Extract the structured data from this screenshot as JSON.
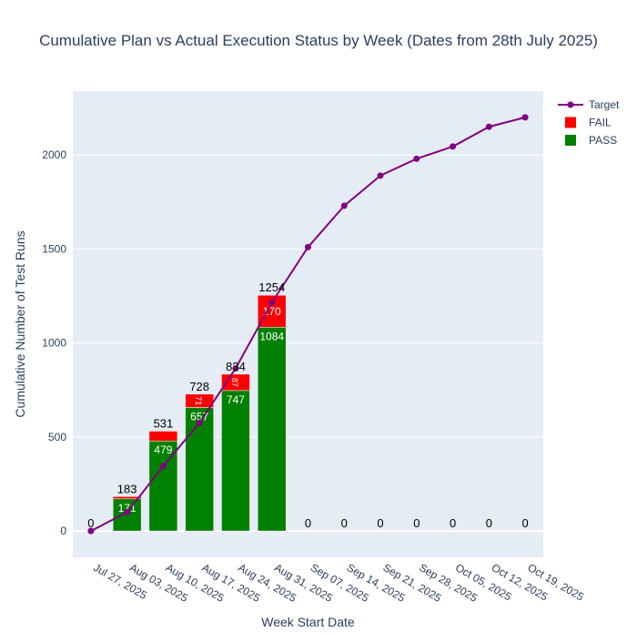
{
  "chart_data": {
    "type": "bar",
    "title": "Cumulative Plan vs Actual Execution Status by Week (Dates from 28th July 2025)",
    "xlabel": "Week Start Date",
    "ylabel": "Cumulative Number of Test Runs",
    "categories": [
      "Jul 27, 2025",
      "Aug 03, 2025",
      "Aug 10, 2025",
      "Aug 17, 2025",
      "Aug 24, 2025",
      "Aug 31, 2025",
      "Sep 07, 2025",
      "Sep 14, 2025",
      "Sep 21, 2025",
      "Sep 28, 2025",
      "Oct 05, 2025",
      "Oct 12, 2025",
      "Oct 19, 2025"
    ],
    "ylim": [
      -140,
      2340
    ],
    "yticks": [
      0,
      500,
      1000,
      1500,
      2000
    ],
    "grid": true,
    "legend_position": "top-right",
    "series": [
      {
        "name": "Target",
        "kind": "line",
        "color": "#800080",
        "values": [
          0,
          100,
          345,
          575,
          865,
          1215,
          1510,
          1730,
          1890,
          1980,
          2045,
          2150,
          2200
        ]
      },
      {
        "name": "FAIL",
        "kind": "bar",
        "color": "#ff0000",
        "values": [
          0,
          12,
          52,
          71,
          87,
          170,
          0,
          0,
          0,
          0,
          0,
          0,
          0
        ],
        "labels": [
          "",
          "",
          "",
          "71",
          "87",
          "170",
          "",
          "",
          "",
          "",
          "",
          "",
          ""
        ]
      },
      {
        "name": "PASS",
        "kind": "bar",
        "color": "#008000",
        "values": [
          0,
          171,
          479,
          657,
          747,
          1084,
          0,
          0,
          0,
          0,
          0,
          0,
          0
        ],
        "labels": [
          "",
          "171",
          "479",
          "657",
          "747",
          "1084",
          "",
          "",
          "",
          "",
          "",
          "",
          ""
        ]
      }
    ],
    "totals": [
      "0",
      "183",
      "531",
      "728",
      "834",
      "1254",
      "0",
      "0",
      "0",
      "0",
      "0",
      "0",
      "0"
    ]
  }
}
